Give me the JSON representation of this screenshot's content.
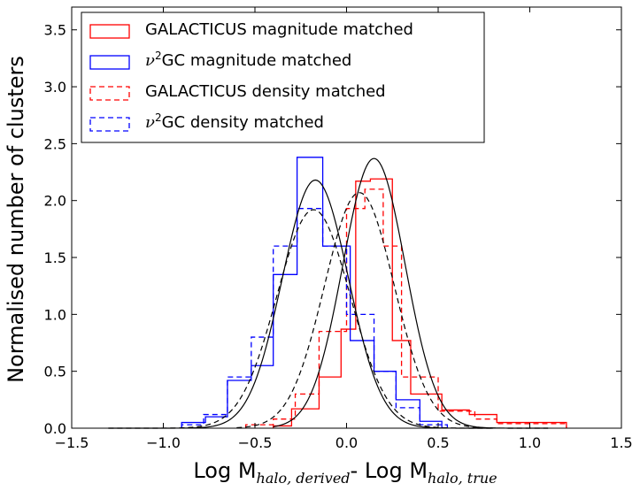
{
  "chart_data": {
    "type": "histogram",
    "title": "",
    "xlabel": {
      "prefix": "Log M",
      "sub1": "halo, derived",
      "mid": "- Log M",
      "sub2": "halo, true"
    },
    "ylabel": "Normalised number of clusters",
    "xlim": [
      -1.5,
      1.5
    ],
    "ylim": [
      0.0,
      3.7
    ],
    "xticks": [
      -1.5,
      -1.0,
      -0.5,
      0.0,
      0.5,
      1.0,
      1.5
    ],
    "xtick_labels": [
      "−1.5",
      "−1.0",
      "−0.5",
      "0.0",
      "0.5",
      "1.0",
      "1.5"
    ],
    "yticks": [
      0.0,
      0.5,
      1.0,
      1.5,
      2.0,
      2.5,
      3.0,
      3.5
    ],
    "ytick_labels": [
      "0.0",
      "0.5",
      "1.0",
      "1.5",
      "2.0",
      "2.5",
      "3.0",
      "3.5"
    ],
    "legend_position": "top-left",
    "legend": [
      {
        "label": "GALACTICUS magnitude matched",
        "color": "#ff0000",
        "style": "solid"
      },
      {
        "label": "ν²GC magnitude matched",
        "color": "#0000ff",
        "style": "solid"
      },
      {
        "label": "GALACTICUS density matched",
        "color": "#ff0000",
        "style": "dashed"
      },
      {
        "label": "ν²GC density matched",
        "color": "#0000ff",
        "style": "dashed"
      }
    ],
    "series": [
      {
        "name": "GALACTICUS magnitude matched",
        "color": "#ff0000",
        "style": "solid",
        "edges": [
          -0.4,
          -0.3,
          -0.15,
          -0.03,
          0.05,
          0.13,
          0.25,
          0.35,
          0.52,
          0.67,
          0.82,
          1.2
        ],
        "values": [
          0.02,
          0.17,
          0.45,
          0.87,
          2.17,
          2.19,
          0.77,
          0.3,
          0.16,
          0.12,
          0.05
        ]
      },
      {
        "name": "ν²GC magnitude matched",
        "color": "#0000ff",
        "style": "solid",
        "edges": [
          -0.9,
          -0.77,
          -0.65,
          -0.52,
          -0.4,
          -0.27,
          -0.13,
          0.02,
          0.15,
          0.27,
          0.4,
          0.52
        ],
        "values": [
          0.05,
          0.1,
          0.42,
          0.55,
          1.35,
          2.38,
          1.6,
          0.77,
          0.5,
          0.25,
          0.06
        ]
      },
      {
        "name": "GALACTICUS density matched",
        "color": "#ff0000",
        "style": "dashed",
        "edges": [
          -0.55,
          -0.4,
          -0.28,
          -0.15,
          0.0,
          0.1,
          0.2,
          0.3,
          0.5,
          0.7,
          0.82,
          1.2
        ],
        "values": [
          0.03,
          0.08,
          0.3,
          0.85,
          1.93,
          2.1,
          1.6,
          0.45,
          0.15,
          0.08,
          0.04
        ]
      },
      {
        "name": "ν²GC density matched",
        "color": "#0000ff",
        "style": "dashed",
        "edges": [
          -0.9,
          -0.78,
          -0.65,
          -0.52,
          -0.4,
          -0.27,
          -0.13,
          0.0,
          0.15,
          0.27,
          0.4,
          0.55
        ],
        "values": [
          0.03,
          0.12,
          0.45,
          0.8,
          1.6,
          1.93,
          1.6,
          1.0,
          0.5,
          0.18,
          0.03
        ]
      }
    ],
    "gaussian_fits": [
      {
        "name": "fit solid red",
        "color": "#000000",
        "style": "solid",
        "mu": 0.15,
        "sigma": 0.17,
        "amplitude": 2.37,
        "range": [
          -0.4,
          1.1
        ]
      },
      {
        "name": "fit solid blue",
        "color": "#000000",
        "style": "solid",
        "mu": -0.17,
        "sigma": 0.18,
        "amplitude": 2.18,
        "range": [
          -1.3,
          0.8
        ]
      },
      {
        "name": "fit dashed red",
        "color": "#000000",
        "style": "dashed",
        "mu": 0.07,
        "sigma": 0.19,
        "amplitude": 2.07,
        "range": [
          -0.6,
          1.1
        ]
      },
      {
        "name": "fit dashed blue",
        "color": "#000000",
        "style": "dashed",
        "mu": -0.18,
        "sigma": 0.2,
        "amplitude": 1.92,
        "range": [
          -1.3,
          0.8
        ]
      }
    ]
  }
}
